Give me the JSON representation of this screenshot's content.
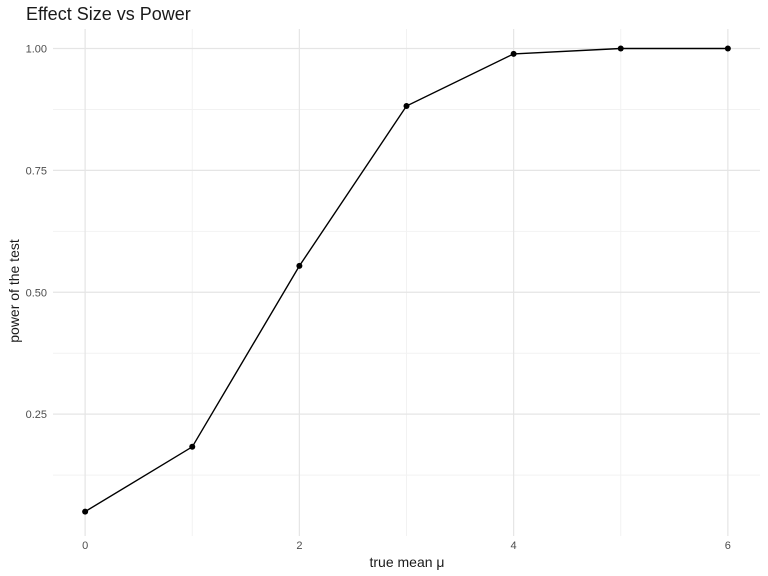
{
  "chart_data": {
    "type": "line",
    "title": "Effect Size vs Power",
    "xlabel": "true mean μ",
    "ylabel": "power of the test",
    "x": [
      0,
      1,
      2,
      3,
      4,
      5,
      6
    ],
    "y": [
      0.05,
      0.183,
      0.554,
      0.882,
      0.989,
      1.0,
      1.0
    ],
    "xlim": [
      -0.3,
      6.3
    ],
    "ylim": [
      0.0,
      1.04
    ],
    "x_ticks": [
      "0",
      "2",
      "4",
      "6"
    ],
    "y_ticks": [
      "0.25",
      "0.50",
      "0.75",
      "1.00"
    ],
    "grid": true,
    "markers": true,
    "colors": {
      "line": "#000000",
      "grid_major": "#e5e5e5",
      "grid_minor": "#f2f2f2"
    }
  }
}
